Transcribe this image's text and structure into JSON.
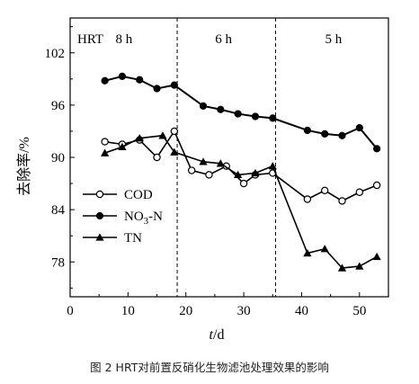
{
  "caption": "图 2 HRT对前置反硝化生物滤池处理效果的影响",
  "chart_data": {
    "type": "line",
    "ylabel": "去除率/%",
    "xlabel_italic": "t",
    "xlabel_unit": "/d",
    "xlim": [
      0,
      55
    ],
    "ylim": [
      74,
      106
    ],
    "xticks": [
      0,
      10,
      20,
      30,
      40,
      50
    ],
    "yticks": [
      78,
      84,
      90,
      96,
      102
    ],
    "hrt_label": "HRT",
    "phase_boundaries": [
      18.5,
      35.5
    ],
    "phases": [
      {
        "label": "8 h",
        "x_center": 9.3
      },
      {
        "label": "6 h",
        "x_center": 26.5
      },
      {
        "label": "5 h",
        "x_center": 45.5
      }
    ],
    "legend": {
      "placement": "left-middle"
    },
    "series": [
      {
        "name": "COD",
        "marker": "open-circle",
        "x": [
          6,
          9,
          12,
          15,
          18,
          21,
          24,
          27,
          30,
          32,
          35,
          41,
          44,
          47,
          50,
          53
        ],
        "y": [
          91.8,
          91.5,
          92.0,
          90.0,
          93.0,
          88.5,
          88.0,
          89.0,
          87.0,
          88.0,
          88.2,
          85.2,
          86.2,
          85.0,
          86.0,
          86.8
        ]
      },
      {
        "name": "NO3-N",
        "name_main": "NO",
        "name_sub": "3",
        "name_suffix": "-N",
        "marker": "filled-circle",
        "x": [
          6,
          9,
          12,
          15,
          18,
          23,
          26,
          29,
          32,
          35,
          41,
          44,
          47,
          50,
          53
        ],
        "y": [
          98.8,
          99.3,
          98.9,
          97.9,
          98.3,
          95.9,
          95.5,
          95.0,
          94.7,
          94.5,
          93.1,
          92.7,
          92.5,
          93.4,
          91.0
        ]
      },
      {
        "name": "TN",
        "marker": "filled-triangle",
        "x": [
          6,
          9,
          12,
          16,
          18,
          23,
          26,
          29,
          32,
          35,
          41,
          44,
          47,
          50,
          53
        ],
        "y": [
          90.5,
          91.2,
          92.2,
          92.5,
          90.6,
          89.5,
          89.3,
          88.0,
          88.2,
          89.0,
          79.0,
          79.5,
          77.3,
          77.5,
          78.6
        ]
      }
    ]
  }
}
